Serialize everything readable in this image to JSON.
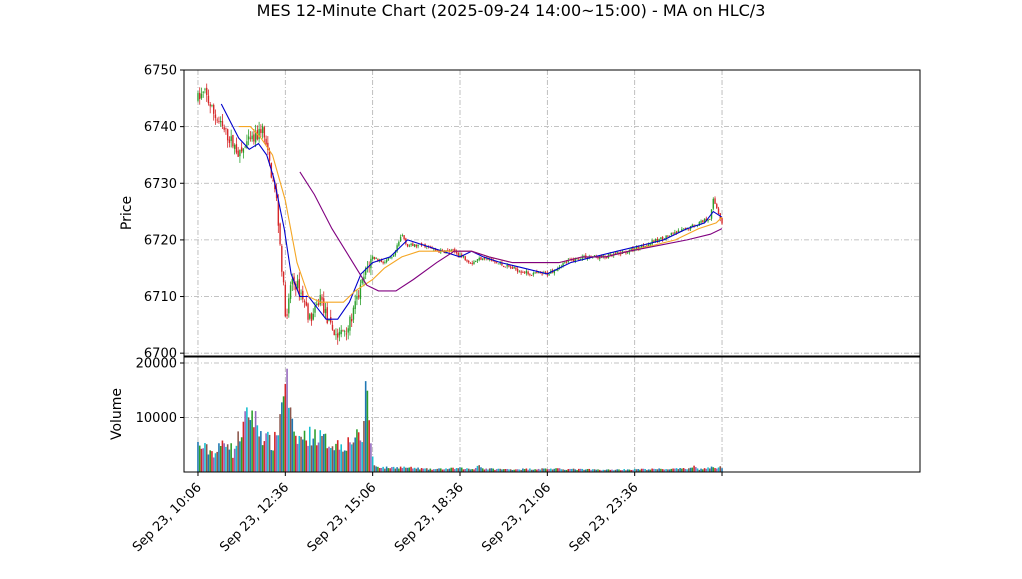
{
  "chart_data": [
    {
      "type": "candlestick",
      "title": "MES 12-Minute Chart (2025-09-24 14:00~15:00) - MA on HLC/3",
      "ylabel": "Price",
      "ylim": [
        6699.5,
        6750
      ],
      "yticks": [
        6700,
        6710,
        6720,
        6730,
        6740,
        6750
      ],
      "x_range_minutes": [
        -24,
        1240
      ],
      "xticks": [
        {
          "min": 0,
          "label": "Sep 23, 10:06"
        },
        {
          "min": 150,
          "label": "Sep 23, 12:36"
        },
        {
          "min": 300,
          "label": "Sep 23, 15:06"
        },
        {
          "min": 450,
          "label": "Sep 23, 18:36"
        },
        {
          "min": 600,
          "label": "Sep 23, 21:06"
        },
        {
          "min": 750,
          "label": "Sep 23, 23:36"
        },
        {
          "min": 900,
          "label": ""
        }
      ],
      "grid": true,
      "up_color": "#2ca02c",
      "down_color": "#d62728",
      "price_anchors": [
        [
          0,
          6745
        ],
        [
          12,
          6746
        ],
        [
          24,
          6743
        ],
        [
          40,
          6740
        ],
        [
          60,
          6737
        ],
        [
          72,
          6735
        ],
        [
          84,
          6737
        ],
        [
          100,
          6738
        ],
        [
          110,
          6740
        ],
        [
          120,
          6735
        ],
        [
          135,
          6727
        ],
        [
          145,
          6714
        ],
        [
          152,
          6705
        ],
        [
          160,
          6713
        ],
        [
          170,
          6712
        ],
        [
          180,
          6710
        ],
        [
          192,
          6706
        ],
        [
          200,
          6707
        ],
        [
          210,
          6710
        ],
        [
          225,
          6705
        ],
        [
          240,
          6703
        ],
        [
          260,
          6705
        ],
        [
          275,
          6710
        ],
        [
          290,
          6715
        ],
        [
          300,
          6717
        ],
        [
          320,
          6716
        ],
        [
          336,
          6717
        ],
        [
          350,
          6721
        ],
        [
          360,
          6719
        ],
        [
          390,
          6719
        ],
        [
          410,
          6718
        ],
        [
          440,
          6718
        ],
        [
          470,
          6716
        ],
        [
          490,
          6717
        ],
        [
          510,
          6716
        ],
        [
          540,
          6715
        ],
        [
          570,
          6714
        ],
        [
          600,
          6714
        ],
        [
          630,
          6716
        ],
        [
          660,
          6717
        ],
        [
          700,
          6717
        ],
        [
          740,
          6718
        ],
        [
          790,
          6720
        ],
        [
          840,
          6722
        ],
        [
          880,
          6724
        ],
        [
          885,
          6727
        ],
        [
          890,
          6726
        ],
        [
          900,
          6723
        ]
      ],
      "ma_lines": [
        {
          "color": "#0000cc",
          "points": [
            [
              40,
              6744
            ],
            [
              55,
              6741
            ],
            [
              70,
              6738
            ],
            [
              88,
              6736
            ],
            [
              104,
              6737
            ],
            [
              118,
              6735
            ],
            [
              130,
              6731
            ],
            [
              148,
              6722
            ],
            [
              160,
              6714
            ],
            [
              175,
              6710
            ],
            [
              190,
              6710
            ],
            [
              205,
              6708
            ],
            [
              220,
              6706
            ],
            [
              240,
              6706
            ],
            [
              260,
              6709
            ],
            [
              280,
              6714
            ],
            [
              300,
              6716
            ],
            [
              330,
              6717
            ],
            [
              360,
              6720
            ],
            [
              390,
              6719
            ],
            [
              420,
              6718
            ],
            [
              450,
              6717
            ],
            [
              470,
              6718
            ],
            [
              490,
              6717
            ],
            [
              520,
              6716
            ],
            [
              560,
              6715
            ],
            [
              600,
              6714
            ],
            [
              640,
              6716
            ],
            [
              680,
              6717
            ],
            [
              720,
              6718
            ],
            [
              760,
              6719
            ],
            [
              800,
              6720
            ],
            [
              840,
              6722
            ],
            [
              870,
              6723
            ],
            [
              885,
              6725
            ],
            [
              900,
              6724
            ]
          ]
        },
        {
          "color": "#f5a623",
          "points": [
            [
              70,
              6740
            ],
            [
              90,
              6740
            ],
            [
              108,
              6738
            ],
            [
              128,
              6735
            ],
            [
              150,
              6727
            ],
            [
              170,
              6716
            ],
            [
              190,
              6710
            ],
            [
              210,
              6709
            ],
            [
              230,
              6709
            ],
            [
              250,
              6709
            ],
            [
              270,
              6711
            ],
            [
              300,
              6713
            ],
            [
              320,
              6715
            ],
            [
              350,
              6717
            ],
            [
              380,
              6718
            ],
            [
              410,
              6718
            ],
            [
              440,
              6718
            ],
            [
              470,
              6718
            ],
            [
              500,
              6717
            ],
            [
              540,
              6716
            ],
            [
              580,
              6716
            ],
            [
              620,
              6716
            ],
            [
              660,
              6717
            ],
            [
              700,
              6717
            ],
            [
              740,
              6718
            ],
            [
              780,
              6719
            ],
            [
              820,
              6720
            ],
            [
              860,
              6722
            ],
            [
              890,
              6723
            ],
            [
              900,
              6724
            ]
          ]
        },
        {
          "color": "#800080",
          "points": [
            [
              175,
              6732
            ],
            [
              200,
              6728
            ],
            [
              230,
              6722
            ],
            [
              260,
              6717
            ],
            [
              290,
              6712
            ],
            [
              310,
              6711
            ],
            [
              340,
              6711
            ],
            [
              370,
              6713
            ],
            [
              410,
              6716
            ],
            [
              440,
              6718
            ],
            [
              470,
              6718
            ],
            [
              500,
              6717
            ],
            [
              540,
              6716
            ],
            [
              580,
              6716
            ],
            [
              620,
              6716
            ],
            [
              660,
              6717
            ],
            [
              700,
              6717
            ],
            [
              740,
              6718
            ],
            [
              790,
              6719
            ],
            [
              840,
              6720
            ],
            [
              880,
              6721
            ],
            [
              900,
              6722
            ]
          ]
        }
      ]
    },
    {
      "type": "bar",
      "ylabel": "Volume",
      "ylim": [
        0,
        20000
      ],
      "yticks": [
        10000,
        20000
      ],
      "bar_colors": [
        "#1f77b4",
        "#2ca02c",
        "#d62728",
        "#9467bd",
        "#17becf",
        "#8c564b"
      ],
      "volume_anchors": [
        [
          0,
          5000
        ],
        [
          30,
          3500
        ],
        [
          50,
          6500
        ],
        [
          60,
          3500
        ],
        [
          70,
          6500
        ],
        [
          90,
          11500
        ],
        [
          110,
          7000
        ],
        [
          130,
          5000
        ],
        [
          140,
          9500
        ],
        [
          145,
          13500
        ],
        [
          150,
          19500
        ],
        [
          155,
          14000
        ],
        [
          165,
          6000
        ],
        [
          180,
          6500
        ],
        [
          200,
          7000
        ],
        [
          225,
          5500
        ],
        [
          250,
          5000
        ],
        [
          270,
          6500
        ],
        [
          280,
          6000
        ],
        [
          285,
          8000
        ],
        [
          288,
          17500
        ],
        [
          292,
          16000
        ],
        [
          296,
          6000
        ],
        [
          302,
          1200
        ],
        [
          320,
          800
        ],
        [
          350,
          900
        ],
        [
          400,
          500
        ],
        [
          450,
          700
        ],
        [
          475,
          500
        ],
        [
          480,
          1500
        ],
        [
          490,
          600
        ],
        [
          530,
          500
        ],
        [
          600,
          600
        ],
        [
          700,
          400
        ],
        [
          760,
          500
        ],
        [
          840,
          600
        ],
        [
          850,
          1200
        ],
        [
          860,
          500
        ],
        [
          880,
          800
        ],
        [
          900,
          900
        ]
      ]
    }
  ]
}
